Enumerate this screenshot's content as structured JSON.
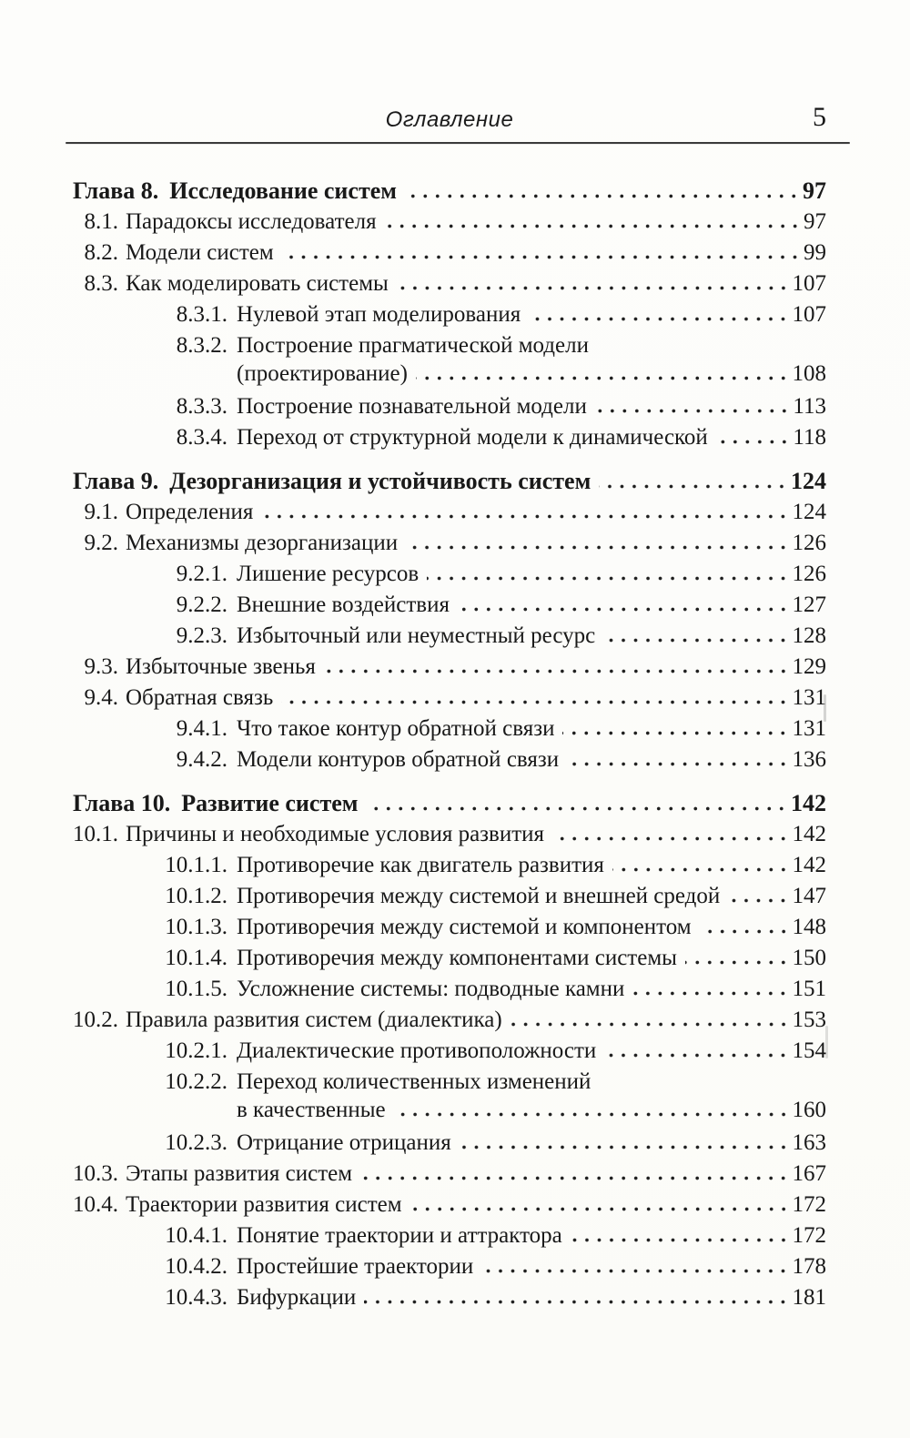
{
  "header": {
    "title": "Оглавление",
    "page_number": "5"
  },
  "toc": {
    "entries": [
      {
        "level": 0,
        "num": "Глава 8.",
        "title": "Исследование систем",
        "page": "97"
      },
      {
        "level": 1,
        "num": "8.1.",
        "title": "Парадоксы исследователя",
        "page": "97"
      },
      {
        "level": 1,
        "num": "8.2.",
        "title": "Модели систем",
        "page": "99"
      },
      {
        "level": 1,
        "num": "8.3.",
        "title": "Как моделировать системы",
        "page": "107"
      },
      {
        "level": 2,
        "num": "8.3.1.",
        "title": "Нулевой этап моделирования",
        "page": "107"
      },
      {
        "level": 2,
        "num": "8.3.2.",
        "title": "Построение прагматической модели",
        "title_line2": "(проектирование)",
        "page": "108"
      },
      {
        "level": 2,
        "num": "8.3.3.",
        "title": "Построение познавательной модели",
        "page": "113"
      },
      {
        "level": 2,
        "num": "8.3.4.",
        "title": "Переход от структурной модели к динамической",
        "page": "118"
      },
      {
        "level": 0,
        "num": "Глава 9.",
        "title": "Дезорганизация и устойчивость систем",
        "page": "124"
      },
      {
        "level": 1,
        "num": "9.1.",
        "title": "Определения",
        "page": "124"
      },
      {
        "level": 1,
        "num": "9.2.",
        "title": "Механизмы дезорганизации",
        "page": "126"
      },
      {
        "level": 2,
        "num": "9.2.1.",
        "title": "Лишение ресурсов",
        "page": "126"
      },
      {
        "level": 2,
        "num": "9.2.2.",
        "title": "Внешние воздействия",
        "page": "127"
      },
      {
        "level": 2,
        "num": "9.2.3.",
        "title": "Избыточный или неуместный ресурс",
        "page": "128"
      },
      {
        "level": 1,
        "num": "9.3.",
        "title": "Избыточные звенья",
        "page": "129"
      },
      {
        "level": 1,
        "num": "9.4.",
        "title": "Обратная связь",
        "page": "131"
      },
      {
        "level": 2,
        "num": "9.4.1.",
        "title": "Что такое контур обратной связи",
        "page": "131"
      },
      {
        "level": 2,
        "num": "9.4.2.",
        "title": "Модели контуров обратной связи",
        "page": "136"
      },
      {
        "level": 0,
        "num": "Глава 10.",
        "title": "Развитие систем",
        "page": "142"
      },
      {
        "level": 1,
        "num": "10.1.",
        "title": "Причины и необходимые условия развития",
        "page": "142"
      },
      {
        "level": 2,
        "num": "10.1.1.",
        "title": "Противоречие как двигатель развития",
        "page": "142"
      },
      {
        "level": 2,
        "num": "10.1.2.",
        "title": "Противоречия между системой и внешней средой",
        "page": "147"
      },
      {
        "level": 2,
        "num": "10.1.3.",
        "title": "Противоречия между системой и компонентом",
        "page": "148"
      },
      {
        "level": 2,
        "num": "10.1.4.",
        "title": "Противоречия между компонентами системы",
        "page": "150"
      },
      {
        "level": 2,
        "num": "10.1.5.",
        "title": "Усложнение системы: подводные камни",
        "page": "151"
      },
      {
        "level": 1,
        "num": "10.2.",
        "title": "Правила развития систем (диалектика)",
        "page": "153"
      },
      {
        "level": 2,
        "num": "10.2.1.",
        "title": "Диалектические противоположности",
        "page": "154"
      },
      {
        "level": 2,
        "num": "10.2.2.",
        "title": "Переход количественных изменений",
        "title_line2": "в качественные",
        "page": "160"
      },
      {
        "level": 2,
        "num": "10.2.3.",
        "title": "Отрицание отрицания",
        "page": "163"
      },
      {
        "level": 1,
        "num": "10.3.",
        "title": "Этапы развития систем",
        "page": "167"
      },
      {
        "level": 1,
        "num": "10.4.",
        "title": "Траектории развития систем",
        "page": "172"
      },
      {
        "level": 2,
        "num": "10.4.1.",
        "title": "Понятие траектории и аттрактора",
        "page": "172"
      },
      {
        "level": 2,
        "num": "10.4.2.",
        "title": "Простейшие траектории",
        "page": "178"
      },
      {
        "level": 2,
        "num": "10.4.3.",
        "title": "Бифуркации",
        "page": "181"
      }
    ]
  }
}
